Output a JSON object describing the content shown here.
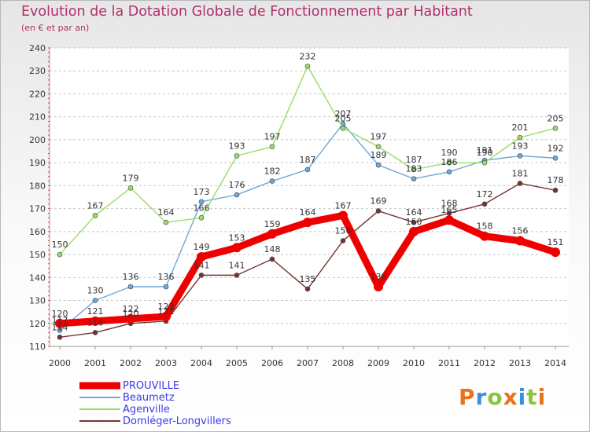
{
  "header": {
    "title": "Evolution de la Dotation Globale de Fonctionnement par Habitant",
    "subtitle": "(en € et par an)"
  },
  "logo": {
    "text": "Proxiti",
    "colors": [
      "#e8731a",
      "#3a8fd8",
      "#8cc43c",
      "#e8731a",
      "#3a8fd8",
      "#8cc43c",
      "#e8731a"
    ]
  },
  "chart_data": {
    "type": "line",
    "title": "Evolution de la Dotation Globale de Fonctionnement par Habitant",
    "subtitle": "(en € et par an)",
    "x": [
      2000,
      2001,
      2002,
      2003,
      2004,
      2005,
      2006,
      2007,
      2008,
      2009,
      2010,
      2011,
      2012,
      2013,
      2014
    ],
    "ylim": [
      110,
      240
    ],
    "yticks": [
      110,
      120,
      130,
      140,
      150,
      160,
      170,
      180,
      190,
      200,
      210,
      220,
      230,
      240
    ],
    "grid": "horizontal dashed",
    "legend_position": "bottom-left",
    "series": [
      {
        "name": "PROUVILLE",
        "color": "#ee0000",
        "values": [
          120,
          121,
          122,
          123,
          149,
          153,
          159,
          164,
          167,
          136,
          160,
          165,
          158,
          156,
          151
        ]
      },
      {
        "name": "Beaumetz",
        "color": "#6fa8d8",
        "values": [
          117,
          130,
          136,
          136,
          173,
          176,
          182,
          187,
          207,
          189,
          183,
          186,
          191,
          193,
          192
        ]
      },
      {
        "name": "Agenville",
        "color": "#99dd66",
        "values": [
          150,
          167,
          179,
          164,
          166,
          193,
          197,
          232,
          205,
          197,
          187,
          190,
          190,
          201,
          205
        ]
      },
      {
        "name": "Domléger-Longvillers",
        "color": "#773333",
        "values": [
          114,
          116,
          120,
          121,
          141,
          141,
          148,
          135,
          156,
          169,
          164,
          168,
          172,
          181,
          178
        ]
      }
    ]
  }
}
